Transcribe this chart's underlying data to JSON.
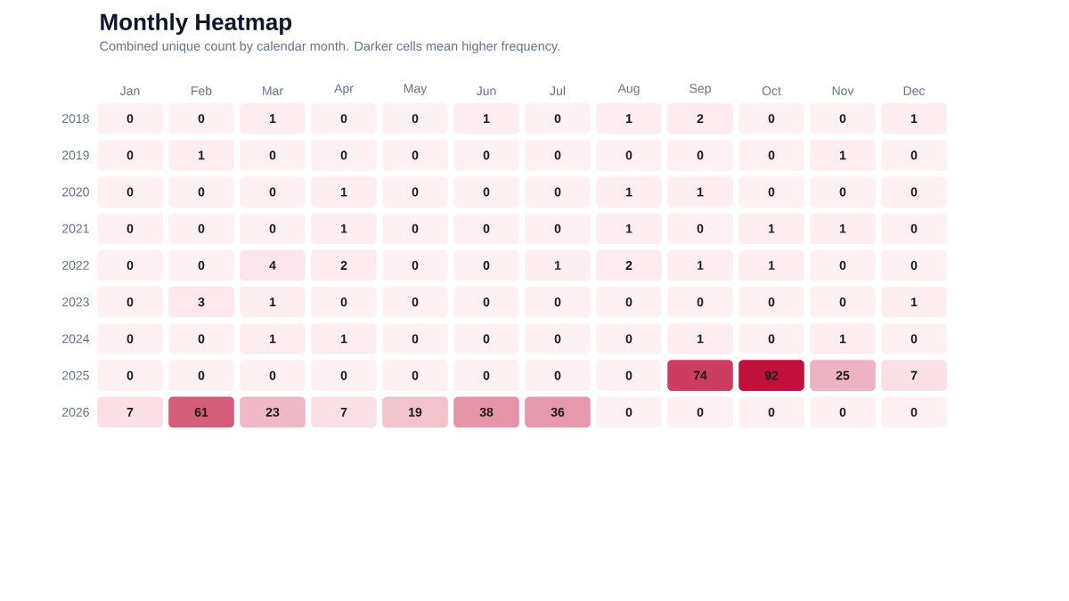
{
  "chart_data": {
    "type": "heatmap",
    "title": "Monthly Heatmap",
    "subtitle": "Combined unique count by calendar month. Darker cells mean higher frequency.",
    "categories": [
      "Jan",
      "Feb",
      "Mar",
      "Apr",
      "May",
      "Jun",
      "Jul",
      "Aug",
      "Sep",
      "Oct",
      "Nov",
      "Dec"
    ],
    "y_categories": [
      "2018",
      "2019",
      "2020",
      "2021",
      "2022",
      "2023",
      "2024",
      "2025",
      "2026"
    ],
    "cells": [
      [
        0,
        0,
        1,
        0,
        0,
        1,
        0,
        1,
        2,
        0,
        0,
        1
      ],
      [
        0,
        1,
        0,
        0,
        0,
        0,
        0,
        0,
        0,
        0,
        1,
        0
      ],
      [
        0,
        0,
        0,
        1,
        0,
        0,
        0,
        1,
        1,
        0,
        0,
        0
      ],
      [
        0,
        0,
        0,
        1,
        0,
        0,
        0,
        1,
        0,
        1,
        1,
        0
      ],
      [
        0,
        0,
        4,
        2,
        0,
        0,
        1,
        2,
        1,
        1,
        0,
        0
      ],
      [
        0,
        3,
        1,
        0,
        0,
        0,
        0,
        0,
        0,
        0,
        0,
        1
      ],
      [
        0,
        0,
        1,
        1,
        0,
        0,
        0,
        0,
        1,
        0,
        1,
        0
      ],
      [
        0,
        0,
        0,
        0,
        0,
        0,
        0,
        0,
        74,
        92,
        25,
        7
      ],
      [
        7,
        61,
        23,
        7,
        19,
        38,
        36,
        0,
        0,
        0,
        0,
        0
      ]
    ],
    "data_labels": true
  }
}
